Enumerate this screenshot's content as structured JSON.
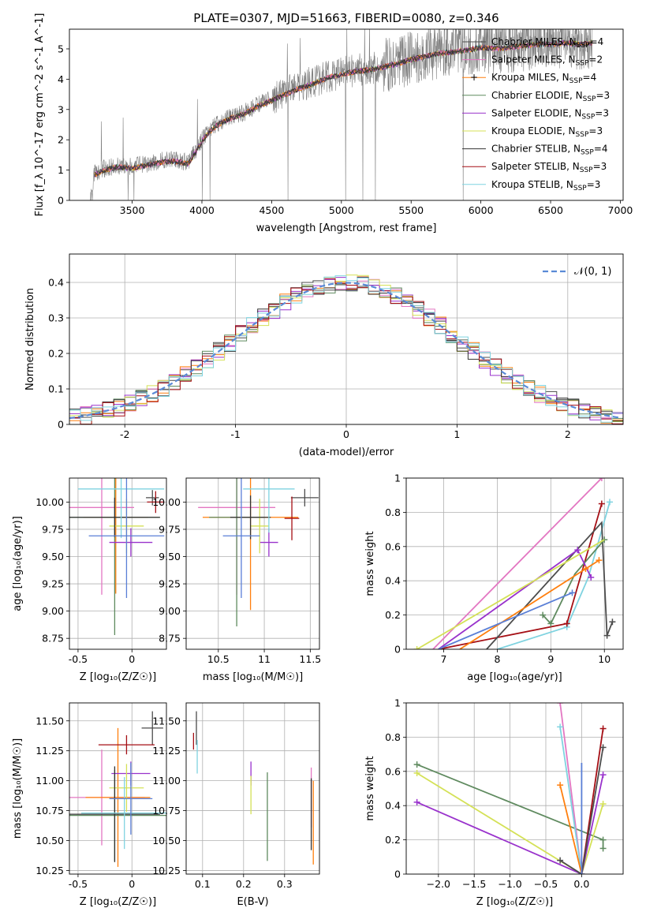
{
  "figure": {
    "title": "PLATE=0307, MJD=51663, FIBERID=0080, z=0.346"
  },
  "styles": {
    "chabrier_miles": "#4c4c4c",
    "salpeter_miles": "#e377c2",
    "kroupa_miles": "#ff7f0e",
    "chabrier_elodie": "#5f8a5f",
    "salpeter_elodie": "#9932cc",
    "kroupa_elodie": "#d4e157",
    "chabrier_stelib": "#333333",
    "salpeter_stelib": "#a50f15",
    "kroupa_stelib": "#7fd3e0",
    "gauss": "#5a8ad6",
    "extra_blue": "#5a7fd6"
  },
  "chart_data": [
    {
      "id": "spectrum",
      "type": "line",
      "xlabel": "wavelength [Angstrom, rest frame]",
      "ylabel": "Flux [f_λ 10^-17 erg cm^-2 s^-1 A^-1]",
      "xlim": [
        3050,
        7020
      ],
      "ylim": [
        0,
        5.65
      ],
      "xticks": [
        3500,
        4000,
        4500,
        5000,
        5500,
        6000,
        6500,
        7000
      ],
      "yticks": [
        0,
        1,
        2,
        3,
        4,
        5
      ],
      "data_color": "#808080",
      "data_xrange": [
        3200,
        6800
      ],
      "continuum_x": [
        3200,
        3230,
        3300,
        3400,
        3500,
        3600,
        3700,
        3800,
        3900,
        3950,
        4000,
        4050,
        4100,
        4200,
        4300,
        4400,
        4500,
        4600,
        4700,
        4800,
        4900,
        5000,
        5100,
        5200,
        5300,
        5400,
        5500,
        5600,
        5700,
        5800,
        5900,
        6000,
        6100,
        6200,
        6300,
        6400,
        6500,
        6600,
        6700,
        6800
      ],
      "continuum_y": [
        0.0,
        0.9,
        1.05,
        1.15,
        1.1,
        1.2,
        1.3,
        1.35,
        1.25,
        1.6,
        2.0,
        2.3,
        2.5,
        2.75,
        2.9,
        3.15,
        3.35,
        3.55,
        3.75,
        3.9,
        4.1,
        4.2,
        4.3,
        4.35,
        4.45,
        4.55,
        4.7,
        4.8,
        4.9,
        4.95,
        5.0,
        5.1,
        5.05,
        5.1,
        5.15,
        5.2,
        5.2,
        5.25,
        5.2,
        5.25
      ],
      "legend": [
        {
          "style": "chabrier_miles",
          "label": "Chabrier MILES, N",
          "n": "4"
        },
        {
          "style": "salpeter_miles",
          "label": "Salpeter MILES, N",
          "n": "2"
        },
        {
          "style": "kroupa_miles",
          "label": "Kroupa MILES, N",
          "n": "4"
        },
        {
          "style": "chabrier_elodie",
          "label": "Chabrier ELODIE, N",
          "n": "3"
        },
        {
          "style": "salpeter_elodie",
          "label": "Salpeter ELODIE, N",
          "n": "3"
        },
        {
          "style": "kroupa_elodie",
          "label": "Kroupa ELODIE, N",
          "n": "3"
        },
        {
          "style": "chabrier_stelib",
          "label": "Chabrier STELIB, N",
          "n": "4"
        },
        {
          "style": "salpeter_stelib",
          "label": "Salpeter STELIB, N",
          "n": "3"
        },
        {
          "style": "kroupa_stelib",
          "label": "Kroupa STELIB, N",
          "n": "3"
        }
      ],
      "legend_sub": "SSP",
      "legend_placement": "top-right"
    },
    {
      "id": "residuals",
      "type": "histogram",
      "xlabel": "(data-model)/error",
      "ylabel": "Normed distribution",
      "xlim": [
        -2.5,
        2.5
      ],
      "ylim": [
        0,
        0.48
      ],
      "xticks": [
        -2,
        -1,
        0,
        1,
        2
      ],
      "yticks": [
        0.0,
        0.1,
        0.2,
        0.3,
        0.4
      ],
      "grid": true,
      "legend": "𝒩(0, 1)",
      "legend_placement": "top-right",
      "bin_width": 0.1
    },
    {
      "id": "age_vs_Z",
      "type": "errorbar",
      "xlabel": "Z [log₁₀(Z/Z☉)]",
      "ylabel": "age  [log₁₀(age/yr)]",
      "xlim": [
        -0.58,
        0.32
      ],
      "ylim": [
        8.65,
        10.22
      ],
      "xticks": [
        -0.5,
        0.0
      ],
      "yticks": [
        8.75,
        9.0,
        9.25,
        9.5,
        9.75,
        10.0
      ],
      "ytick_labels": [
        "8.75",
        "9.00",
        "9.25",
        "9.50",
        "9.75",
        "10.00"
      ],
      "points": [
        {
          "style": "chabrier_miles",
          "x": 0.19,
          "y": 10.04,
          "xerr": 0.06,
          "yerr": 0.07
        },
        {
          "style": "salpeter_miles",
          "x": -0.28,
          "y": 9.95,
          "xerr": 0.3,
          "yerr": 0.8
        },
        {
          "style": "kroupa_miles",
          "x": -0.15,
          "y": 9.86,
          "xerr": 0.3,
          "yerr": 0.7
        },
        {
          "style": "chabrier_elodie",
          "x": -0.16,
          "y": 9.86,
          "xerr": 0.42,
          "yerr": 1.08
        },
        {
          "style": "salpeter_elodie",
          "x": -0.01,
          "y": 9.63,
          "xerr": 0.2,
          "yerr": 0.13
        },
        {
          "style": "kroupa_elodie",
          "x": -0.05,
          "y": 9.78,
          "xerr": 0.16,
          "yerr": 0.25
        },
        {
          "style": "chabrier_stelib",
          "x": -0.16,
          "y": 9.86,
          "xerr": 0.42,
          "yerr": 0.18
        },
        {
          "style": "salpeter_stelib",
          "x": 0.22,
          "y": 10.0,
          "xerr": 0.08,
          "yerr": 0.1
        },
        {
          "style": "kroupa_stelib",
          "x": -0.1,
          "y": 10.12,
          "xerr": 0.4,
          "yerr": 0.45
        },
        {
          "style": "extra_blue",
          "x": -0.05,
          "y": 9.69,
          "xerr": 0.35,
          "yerr": 0.57
        }
      ]
    },
    {
      "id": "age_vs_mass",
      "type": "errorbar",
      "xlabel": "mass [log₁₀(M/M☉)]",
      "ylabel": "",
      "xlim": [
        10.15,
        11.6
      ],
      "ylim": [
        8.65,
        10.22
      ],
      "xticks": [
        10.5,
        11.0,
        11.5
      ],
      "yticks": [
        8.75,
        9.0,
        9.25,
        9.5,
        9.75,
        10.0
      ],
      "ytick_labels": [
        "8.75",
        "9.00",
        "9.25",
        "9.50",
        "9.75",
        "10.00"
      ],
      "points": [
        {
          "style": "chabrier_miles",
          "x": 11.44,
          "y": 10.04,
          "xerr": 0.15,
          "yerr": 0.08
        },
        {
          "style": "salpeter_miles",
          "x": 10.7,
          "y": 9.95,
          "xerr": 0.42,
          "yerr": 0.8
        },
        {
          "style": "kroupa_miles",
          "x": 10.85,
          "y": 9.86,
          "xerr": 0.52,
          "yerr": 0.85
        },
        {
          "style": "chabrier_elodie",
          "x": 10.7,
          "y": 9.86,
          "xerr": 0.3,
          "yerr": 1.0
        },
        {
          "style": "salpeter_elodie",
          "x": 11.05,
          "y": 9.63,
          "xerr": 0.1,
          "yerr": 0.13
        },
        {
          "style": "kroupa_elodie",
          "x": 10.95,
          "y": 9.78,
          "xerr": 0.1,
          "yerr": 0.25
        },
        {
          "style": "chabrier_stelib",
          "x": 10.85,
          "y": 9.86,
          "xerr": 0.22,
          "yerr": 0.2
        },
        {
          "style": "salpeter_stelib",
          "x": 11.3,
          "y": 9.85,
          "xerr": 0.08,
          "yerr": 0.2
        },
        {
          "style": "kroupa_stelib",
          "x": 11.05,
          "y": 10.12,
          "xerr": 0.28,
          "yerr": 0.4
        },
        {
          "style": "extra_blue",
          "x": 10.75,
          "y": 9.69,
          "xerr": 0.2,
          "yerr": 0.57
        }
      ]
    },
    {
      "id": "massweight_vs_age",
      "type": "line",
      "xlabel": "age  [log₁₀(age/yr)]",
      "ylabel": "mass weight",
      "xlim": [
        6.3,
        10.35
      ],
      "ylim": [
        0,
        1.0
      ],
      "xticks": [
        7,
        8,
        9,
        10
      ],
      "yticks": [
        0.0,
        0.2,
        0.4,
        0.6,
        0.8,
        1.0
      ],
      "grid": true,
      "series": [
        {
          "style": "salpeter_miles",
          "x": [
            6.8,
            9.95
          ],
          "y": [
            0.0,
            1.0
          ],
          "markers": [
            9.95
          ]
        },
        {
          "style": "kroupa_stelib",
          "x": [
            8.0,
            9.3,
            9.7,
            10.1
          ],
          "y": [
            0.0,
            0.13,
            0.42,
            0.86
          ],
          "markers": [
            9.3,
            10.1
          ]
        },
        {
          "style": "salpeter_stelib",
          "x": [
            6.9,
            9.3,
            9.95
          ],
          "y": [
            0.0,
            0.15,
            0.85
          ],
          "markers": [
            9.3,
            9.95
          ]
        },
        {
          "style": "chabrier_miles",
          "x": [
            7.8,
            9.95,
            10.05,
            10.15
          ],
          "y": [
            0.0,
            0.74,
            0.08,
            0.16
          ],
          "markers": [
            10.05,
            10.15
          ]
        },
        {
          "style": "chabrier_elodie",
          "x": [
            8.85,
            9.0,
            9.45,
            10.0
          ],
          "y": [
            0.2,
            0.15,
            0.44,
            0.64
          ],
          "markers": [
            8.85,
            9.0,
            10.0
          ]
        },
        {
          "style": "salpeter_elodie",
          "x": [
            6.9,
            9.5,
            9.75
          ],
          "y": [
            0.0,
            0.58,
            0.42
          ],
          "markers": [
            9.5,
            9.75
          ]
        },
        {
          "style": "kroupa_elodie",
          "x": [
            6.5,
            10.0
          ],
          "y": [
            0.0,
            0.64
          ],
          "markers": [
            6.5
          ]
        },
        {
          "style": "kroupa_miles",
          "x": [
            7.3,
            9.65,
            9.9
          ],
          "y": [
            0.0,
            0.47,
            0.52
          ],
          "markers": [
            9.65,
            9.9
          ]
        },
        {
          "style": "extra_blue",
          "x": [
            6.9,
            9.4
          ],
          "y": [
            0.0,
            0.33
          ],
          "markers": [
            9.4
          ]
        }
      ]
    },
    {
      "id": "mass_vs_Z",
      "type": "errorbar",
      "xlabel": "Z [log₁₀(Z/Z☉)]",
      "ylabel": "mass [log₁₀(M/M☉)]",
      "xlim": [
        -0.58,
        0.32
      ],
      "ylim": [
        10.22,
        11.65
      ],
      "xticks": [
        -0.5,
        0.0
      ],
      "yticks": [
        10.25,
        10.5,
        10.75,
        11.0,
        11.25,
        11.5
      ],
      "ytick_labels": [
        "10.25",
        "10.50",
        "10.75",
        "11.00",
        "11.25",
        "11.50"
      ],
      "points": [
        {
          "style": "chabrier_miles",
          "x": 0.19,
          "y": 11.44,
          "xerr": 0.1,
          "yerr": 0.14
        },
        {
          "style": "salpeter_miles",
          "x": -0.28,
          "y": 10.86,
          "xerr": 0.4,
          "yerr": 0.4
        },
        {
          "style": "kroupa_miles",
          "x": -0.13,
          "y": 10.86,
          "xerr": 0.3,
          "yerr": 0.58
        },
        {
          "style": "chabrier_elodie",
          "x": -0.16,
          "y": 10.71,
          "xerr": 0.48,
          "yerr": 0.38
        },
        {
          "style": "salpeter_elodie",
          "x": -0.01,
          "y": 11.06,
          "xerr": 0.18,
          "yerr": 0.1
        },
        {
          "style": "kroupa_elodie",
          "x": -0.05,
          "y": 10.94,
          "xerr": 0.16,
          "yerr": 0.2
        },
        {
          "style": "chabrier_stelib",
          "x": -0.16,
          "y": 10.72,
          "xerr": 0.42,
          "yerr": 0.4
        },
        {
          "style": "salpeter_stelib",
          "x": -0.05,
          "y": 11.3,
          "xerr": 0.26,
          "yerr": 0.08
        },
        {
          "style": "kroupa_stelib",
          "x": -0.07,
          "y": 10.73,
          "xerr": 0.4,
          "yerr": 0.3
        },
        {
          "style": "extra_blue",
          "x": -0.01,
          "y": 10.85,
          "xerr": 0.2,
          "yerr": 0.3
        }
      ]
    },
    {
      "id": "mass_vs_ebv",
      "type": "errorbar",
      "xlabel": "E(B-V)",
      "ylabel": "",
      "xlim": [
        0.06,
        0.385
      ],
      "ylim": [
        10.22,
        11.65
      ],
      "xticks": [
        0.1,
        0.2,
        0.3
      ],
      "yticks": [
        10.25,
        10.5,
        10.75,
        11.0,
        11.25,
        11.5
      ],
      "ytick_labels": [
        "10.25",
        "10.50",
        "10.75",
        "11.00",
        "11.25",
        "11.50"
      ],
      "points": [
        {
          "style": "chabrier_miles",
          "x": 0.085,
          "y": 11.44,
          "xerr": 0.0,
          "yerr": 0.14
        },
        {
          "style": "salpeter_miles",
          "x": 0.365,
          "y": 10.86,
          "xerr": 0.0,
          "yerr": 0.25
        },
        {
          "style": "kroupa_miles",
          "x": 0.37,
          "y": 10.65,
          "xerr": 0.0,
          "yerr": 0.35
        },
        {
          "style": "chabrier_elodie",
          "x": 0.258,
          "y": 10.7,
          "xerr": 0.0,
          "yerr": 0.37
        },
        {
          "style": "salpeter_elodie",
          "x": 0.218,
          "y": 11.06,
          "xerr": 0.0,
          "yerr": 0.1
        },
        {
          "style": "kroupa_elodie",
          "x": 0.218,
          "y": 10.88,
          "xerr": 0.0,
          "yerr": 0.16
        },
        {
          "style": "chabrier_stelib",
          "x": 0.365,
          "y": 10.72,
          "xerr": 0.0,
          "yerr": 0.3
        },
        {
          "style": "salpeter_stelib",
          "x": 0.078,
          "y": 11.33,
          "xerr": 0.0,
          "yerr": 0.07
        },
        {
          "style": "kroupa_stelib",
          "x": 0.087,
          "y": 11.2,
          "xerr": 0.0,
          "yerr": 0.14
        }
      ]
    },
    {
      "id": "massweight_vs_Z",
      "type": "line",
      "xlabel": "Z [log₁₀(Z/Z☉)]",
      "ylabel": "mass weight",
      "xlim": [
        -2.45,
        0.58
      ],
      "ylim": [
        0,
        1.0
      ],
      "xticks": [
        -2.0,
        -1.5,
        -1.0,
        -0.5,
        0.0
      ],
      "xtick_labels": [
        "−2.0",
        "−1.5",
        "−1.0",
        "−0.5",
        "0.0"
      ],
      "yticks": [
        0.0,
        0.2,
        0.4,
        0.6,
        0.8,
        1.0
      ],
      "grid": true,
      "series": [
        {
          "style": "chabrier_elodie",
          "x": [
            -2.3,
            0.3
          ],
          "y": [
            0.64,
            0.2
          ],
          "markers": [
            -2.3,
            0.3
          ]
        },
        {
          "style": "kroupa_elodie",
          "x": [
            -2.3,
            0.0,
            0.3
          ],
          "y": [
            0.59,
            0.0,
            0.41
          ],
          "markers": [
            -2.3,
            0.3
          ]
        },
        {
          "style": "salpeter_elodie",
          "x": [
            -2.3,
            0.0,
            0.3
          ],
          "y": [
            0.42,
            0.0,
            0.58
          ],
          "markers": [
            -2.3,
            0.3
          ]
        },
        {
          "style": "salpeter_miles",
          "x": [
            -0.3,
            0.0
          ],
          "y": [
            1.0,
            0.0
          ],
          "markers": [
            -0.3
          ]
        },
        {
          "style": "kroupa_stelib",
          "x": [
            -0.3,
            0.0
          ],
          "y": [
            0.86,
            0.0
          ],
          "markers": [
            -0.3
          ]
        },
        {
          "style": "kroupa_miles",
          "x": [
            -0.3,
            0.0
          ],
          "y": [
            0.52,
            0.0
          ],
          "markers": [
            -0.3,
            0.0
          ]
        },
        {
          "style": "salpeter_stelib",
          "x": [
            0.0,
            0.3
          ],
          "y": [
            0.0,
            0.85
          ],
          "markers": [
            0.3
          ]
        },
        {
          "style": "chabrier_miles",
          "x": [
            -0.3,
            0.0,
            0.3
          ],
          "y": [
            0.08,
            0.0,
            0.74
          ],
          "markers": [
            -0.3,
            0.3
          ]
        },
        {
          "style": "extra_blue",
          "x": [
            0.0,
            0.0
          ],
          "y": [
            0.0,
            0.65
          ],
          "markers": [
            0.0
          ]
        },
        {
          "style": "chabrier_elodie",
          "x": [
            0.3,
            0.3
          ],
          "y": [
            0.15,
            0.2
          ],
          "markers": [
            0.3
          ]
        }
      ]
    }
  ]
}
